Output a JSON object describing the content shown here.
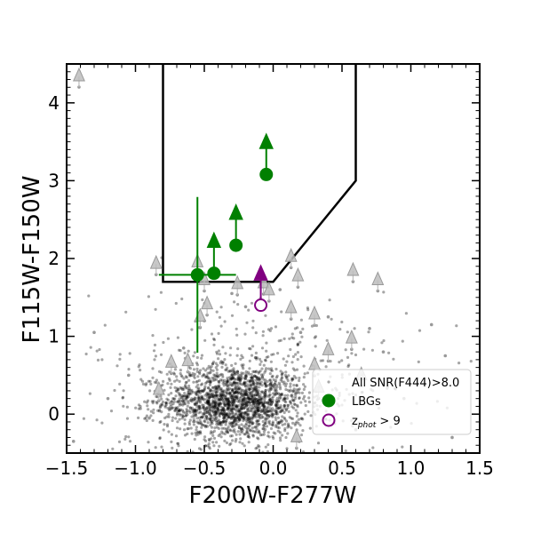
{
  "chart_data": {
    "type": "scatter",
    "xlabel": "F200W-F277W",
    "ylabel": "F115W-F150W",
    "xlim": [
      -1.5,
      1.5
    ],
    "ylim": [
      -0.5,
      4.5
    ],
    "xticks": [
      -1.5,
      -1.0,
      -0.5,
      0.0,
      0.5,
      1.0,
      1.5
    ],
    "xtick_labels": [
      "−1.5",
      "−1.0",
      "−0.5",
      "0.0",
      "0.5",
      "1.0",
      "1.5"
    ],
    "yticks": [
      0,
      1,
      2,
      3,
      4
    ],
    "ytick_labels": [
      "0",
      "1",
      "2",
      "3",
      "4"
    ],
    "grid": false,
    "legend_position": "bottom-right",
    "selection_box": {
      "vertices": [
        [
          -0.8,
          4.5
        ],
        [
          -0.8,
          1.7
        ],
        [
          0.0,
          1.7
        ],
        [
          0.6,
          3.0
        ],
        [
          0.6,
          4.5
        ]
      ]
    },
    "series": [
      {
        "name": "All SNR(F444)>8.0",
        "color": "#000000",
        "marker": "small-dot",
        "n_points": 2200,
        "core_center": [
          -0.28,
          0.15
        ],
        "core_spread": [
          0.26,
          0.24
        ],
        "halo_spread": [
          0.6,
          0.55
        ],
        "sample_points": [
          [
            -0.12,
            1.75
          ],
          [
            0.05,
            1.6
          ],
          [
            -0.3,
            1.55
          ],
          [
            0.4,
            1.25
          ],
          [
            -0.5,
            1.2
          ],
          [
            0.7,
            1.1
          ],
          [
            1.15,
            1.15
          ],
          [
            -1.3,
            1.05
          ],
          [
            0.8,
            0.8
          ],
          [
            1.25,
            0.75
          ],
          [
            -1.05,
            0.5
          ],
          [
            -1.2,
            0.2
          ],
          [
            -1.45,
            -0.35
          ],
          [
            1.3,
            -0.3
          ],
          [
            0.95,
            0.2
          ],
          [
            -0.9,
            -0.05
          ],
          [
            0.6,
            -0.2
          ],
          [
            -0.65,
            0.85
          ],
          [
            0.2,
            1.05
          ],
          [
            -0.2,
            1.38
          ]
        ]
      },
      {
        "name": "LBGs",
        "color": "#008000",
        "marker": "filled-circle",
        "points": [
          {
            "x": -0.05,
            "y": 3.08
          },
          {
            "x": -0.27,
            "y": 2.17
          },
          {
            "x": -0.43,
            "y": 1.81
          },
          {
            "x": -0.55,
            "y": 1.79,
            "xerr": 0.28,
            "yerr_low": 1.0,
            "yerr_high": 1.0
          }
        ],
        "upper_limit_arrows": [
          {
            "x": -0.05,
            "y_from": 3.08,
            "y_to": 3.48
          },
          {
            "x": -0.27,
            "y_from": 2.17,
            "y_to": 2.57
          },
          {
            "x": -0.43,
            "y_from": 1.81,
            "y_to": 2.21
          }
        ]
      },
      {
        "name": "z_phot > 9",
        "legend_label_main": "z",
        "legend_label_sub": "phot",
        "legend_label_tail": " > 9",
        "color": "#800080",
        "marker": "open-circle",
        "points": [
          {
            "x": -0.09,
            "y": 1.4
          }
        ],
        "upper_limit_arrows": [
          {
            "x": -0.09,
            "y_from": 1.4,
            "y_to": 1.79
          }
        ]
      },
      {
        "color": "#bdbdbd",
        "marker": "grey-triangle-limit",
        "points": [
          {
            "x": -1.41,
            "y": 4.34
          },
          {
            "x": -0.85,
            "y": 1.93
          },
          {
            "x": -0.55,
            "y": 1.95
          },
          {
            "x": -0.5,
            "y": 1.72
          },
          {
            "x": -0.48,
            "y": 1.41
          },
          {
            "x": -0.53,
            "y": 1.25
          },
          {
            "x": -0.26,
            "y": 1.67
          },
          {
            "x": -0.07,
            "y": 1.68
          },
          {
            "x": -0.03,
            "y": 1.59
          },
          {
            "x": 0.13,
            "y": 2.02
          },
          {
            "x": 0.18,
            "y": 1.77
          },
          {
            "x": 0.13,
            "y": 1.36
          },
          {
            "x": 0.3,
            "y": 1.28
          },
          {
            "x": 0.58,
            "y": 1.84
          },
          {
            "x": 0.76,
            "y": 1.72
          },
          {
            "x": 0.57,
            "y": 0.97
          },
          {
            "x": 0.4,
            "y": 0.82
          },
          {
            "x": 0.3,
            "y": 0.63
          },
          {
            "x": 0.64,
            "y": 0.5
          },
          {
            "x": -0.74,
            "y": 0.66
          },
          {
            "x": -0.62,
            "y": 0.68
          },
          {
            "x": -0.83,
            "y": 0.31
          },
          {
            "x": 0.33,
            "y": 0.34
          },
          {
            "x": 0.17,
            "y": -0.3
          }
        ]
      }
    ]
  }
}
